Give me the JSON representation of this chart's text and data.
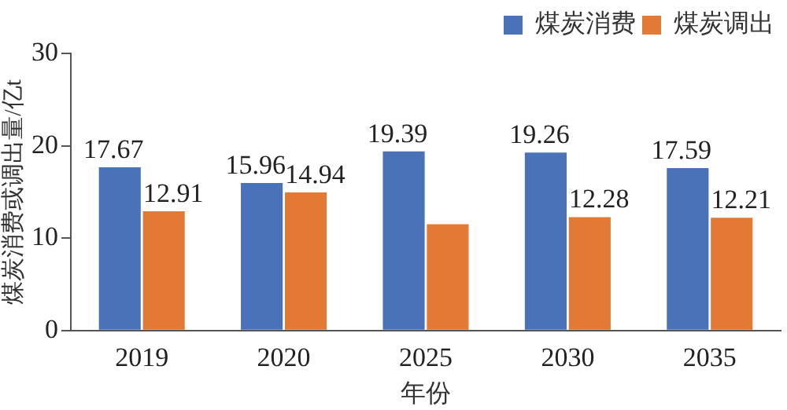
{
  "chart_data": {
    "type": "bar",
    "xlabel": "年份",
    "ylabel": "煤炭消费或调出量/亿t",
    "categories": [
      "2019",
      "2020",
      "2025",
      "2030",
      "2035"
    ],
    "series": [
      {
        "name": "煤炭消费",
        "color": "#4a72b8",
        "values": [
          17.67,
          15.96,
          19.39,
          19.26,
          17.59
        ],
        "value_labels": [
          "17.67",
          "15.96",
          "19.39",
          "19.26",
          "17.59"
        ]
      },
      {
        "name": "煤炭调出",
        "color": "#e27a35",
        "values": [
          12.91,
          14.94,
          11.5,
          12.28,
          12.21
        ],
        "value_labels": [
          "12.91",
          "14.94",
          null,
          "12.28",
          "12.21"
        ]
      }
    ],
    "ylim": [
      0,
      30
    ],
    "yticks": [
      0,
      10,
      20,
      30
    ],
    "grid": false,
    "legend": "top"
  }
}
